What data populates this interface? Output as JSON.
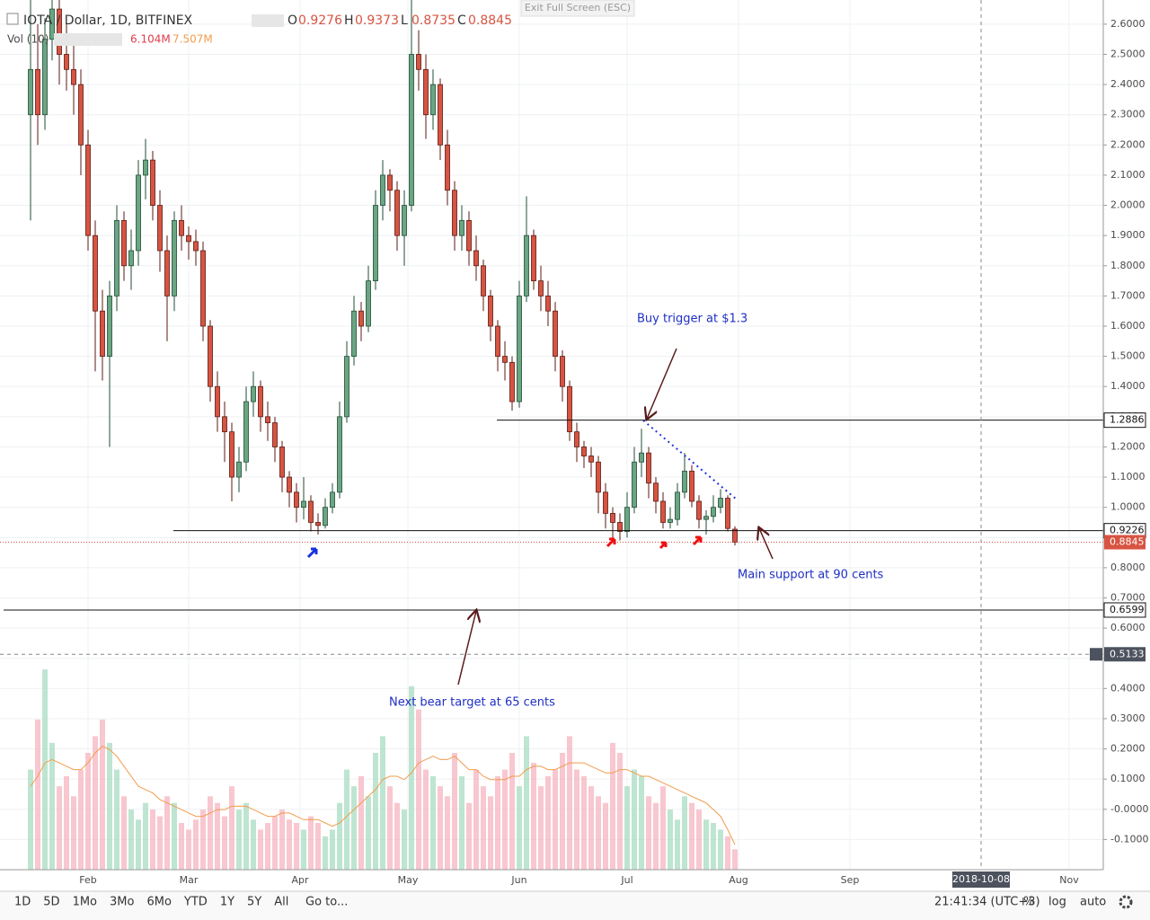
{
  "chart_data": {
    "type": "candlestick",
    "title": "IOTA / Dollar, 1D, BITFINEX",
    "ohlc_labels": [
      "O",
      "H",
      "L",
      "C"
    ],
    "ohlc": [
      [
        2.3,
        2.7,
        1.95,
        2.45
      ],
      [
        2.45,
        2.6,
        2.2,
        2.3
      ],
      [
        2.3,
        2.62,
        2.25,
        2.55
      ],
      [
        2.55,
        2.72,
        2.48,
        2.65
      ],
      [
        2.65,
        2.7,
        2.4,
        2.5
      ],
      [
        2.5,
        2.62,
        2.38,
        2.45
      ],
      [
        2.45,
        2.55,
        2.3,
        2.4
      ],
      [
        2.4,
        2.45,
        2.1,
        2.2
      ],
      [
        2.2,
        2.25,
        1.85,
        1.9
      ],
      [
        1.9,
        1.95,
        1.45,
        1.65
      ],
      [
        1.65,
        1.72,
        1.42,
        1.5
      ],
      [
        1.5,
        1.75,
        1.2,
        1.7
      ],
      [
        1.7,
        2.0,
        1.65,
        1.95
      ],
      [
        1.95,
        1.98,
        1.75,
        1.8
      ],
      [
        1.8,
        1.92,
        1.72,
        1.85
      ],
      [
        1.85,
        2.15,
        1.8,
        2.1
      ],
      [
        2.1,
        2.22,
        2.02,
        2.15
      ],
      [
        2.15,
        2.18,
        1.95,
        2.0
      ],
      [
        2.0,
        2.05,
        1.78,
        1.85
      ],
      [
        1.85,
        1.9,
        1.55,
        1.7
      ],
      [
        1.7,
        1.98,
        1.65,
        1.95
      ],
      [
        1.95,
        2.0,
        1.85,
        1.9
      ],
      [
        1.9,
        1.93,
        1.82,
        1.88
      ],
      [
        1.88,
        1.92,
        1.8,
        1.85
      ],
      [
        1.85,
        1.88,
        1.55,
        1.6
      ],
      [
        1.6,
        1.62,
        1.35,
        1.4
      ],
      [
        1.4,
        1.45,
        1.25,
        1.3
      ],
      [
        1.3,
        1.35,
        1.15,
        1.25
      ],
      [
        1.25,
        1.28,
        1.02,
        1.1
      ],
      [
        1.1,
        1.2,
        1.05,
        1.15
      ],
      [
        1.15,
        1.4,
        1.12,
        1.35
      ],
      [
        1.35,
        1.45,
        1.3,
        1.4
      ],
      [
        1.4,
        1.42,
        1.25,
        1.3
      ],
      [
        1.3,
        1.35,
        1.22,
        1.28
      ],
      [
        1.28,
        1.3,
        1.15,
        1.2
      ],
      [
        1.2,
        1.22,
        1.05,
        1.1
      ],
      [
        1.1,
        1.12,
        1.0,
        1.05
      ],
      [
        1.05,
        1.08,
        0.95,
        1.0
      ],
      [
        1.0,
        1.1,
        0.96,
        1.02
      ],
      [
        1.02,
        1.04,
        0.92,
        0.95
      ],
      [
        0.95,
        0.98,
        0.91,
        0.94
      ],
      [
        0.94,
        1.03,
        0.93,
        1.0
      ],
      [
        1.0,
        1.08,
        0.98,
        1.05
      ],
      [
        1.05,
        1.35,
        1.03,
        1.3
      ],
      [
        1.3,
        1.55,
        1.28,
        1.5
      ],
      [
        1.5,
        1.7,
        1.47,
        1.65
      ],
      [
        1.65,
        1.68,
        1.55,
        1.6
      ],
      [
        1.6,
        1.8,
        1.58,
        1.75
      ],
      [
        1.75,
        2.05,
        1.72,
        2.0
      ],
      [
        2.0,
        2.15,
        1.95,
        2.1
      ],
      [
        2.1,
        2.12,
        1.98,
        2.05
      ],
      [
        2.05,
        2.08,
        1.85,
        1.9
      ],
      [
        1.9,
        2.05,
        1.8,
        2.0
      ],
      [
        2.0,
        2.68,
        1.98,
        2.5
      ],
      [
        2.5,
        2.58,
        2.38,
        2.45
      ],
      [
        2.45,
        2.5,
        2.22,
        2.3
      ],
      [
        2.3,
        2.45,
        2.25,
        2.4
      ],
      [
        2.4,
        2.42,
        2.15,
        2.2
      ],
      [
        2.2,
        2.25,
        2.0,
        2.05
      ],
      [
        2.05,
        2.08,
        1.85,
        1.9
      ],
      [
        1.9,
        2.0,
        1.85,
        1.95
      ],
      [
        1.95,
        1.98,
        1.8,
        1.85
      ],
      [
        1.85,
        1.9,
        1.75,
        1.8
      ],
      [
        1.8,
        1.82,
        1.65,
        1.7
      ],
      [
        1.7,
        1.72,
        1.55,
        1.6
      ],
      [
        1.6,
        1.62,
        1.45,
        1.5
      ],
      [
        1.5,
        1.55,
        1.42,
        1.48
      ],
      [
        1.48,
        1.5,
        1.32,
        1.35
      ],
      [
        1.35,
        1.75,
        1.33,
        1.7
      ],
      [
        1.7,
        2.03,
        1.68,
        1.9
      ],
      [
        1.9,
        1.92,
        1.72,
        1.75
      ],
      [
        1.75,
        1.8,
        1.65,
        1.7
      ],
      [
        1.7,
        1.75,
        1.6,
        1.65
      ],
      [
        1.65,
        1.68,
        1.45,
        1.5
      ],
      [
        1.5,
        1.52,
        1.35,
        1.4
      ],
      [
        1.4,
        1.42,
        1.22,
        1.25
      ],
      [
        1.25,
        1.28,
        1.15,
        1.2
      ],
      [
        1.2,
        1.22,
        1.13,
        1.17
      ],
      [
        1.17,
        1.2,
        1.1,
        1.15
      ],
      [
        1.15,
        1.17,
        0.98,
        1.05
      ],
      [
        1.05,
        1.08,
        0.93,
        0.98
      ],
      [
        0.98,
        1.0,
        0.89,
        0.95
      ],
      [
        0.95,
        0.98,
        0.89,
        0.92
      ],
      [
        0.92,
        1.05,
        0.9,
        1.0
      ],
      [
        1.0,
        1.2,
        0.98,
        1.15
      ],
      [
        1.15,
        1.26,
        1.1,
        1.18
      ],
      [
        1.18,
        1.2,
        1.03,
        1.08
      ],
      [
        1.08,
        1.1,
        0.98,
        1.02
      ],
      [
        1.02,
        1.05,
        0.93,
        0.95
      ],
      [
        0.95,
        1.0,
        0.93,
        0.96
      ],
      [
        0.96,
        1.08,
        0.94,
        1.05
      ],
      [
        1.05,
        1.18,
        1.03,
        1.12
      ],
      [
        1.12,
        1.14,
        1.0,
        1.02
      ],
      [
        1.02,
        1.04,
        0.93,
        0.96
      ],
      [
        0.96,
        0.99,
        0.91,
        0.97
      ],
      [
        0.97,
        1.04,
        0.95,
        1.0
      ],
      [
        1.0,
        1.06,
        0.98,
        1.03
      ],
      [
        1.03,
        1.04,
        0.92,
        0.93
      ],
      [
        0.9276,
        0.9373,
        0.8735,
        0.8845
      ]
    ],
    "up_color": "#6ba583",
    "down_color": "#d75442",
    "volume": {
      "label": "Vol (10)",
      "last_label": "6.104M",
      "ma_last_label": "7.507M",
      "ma_color": "#f29c4c",
      "values": [
        30,
        45,
        60,
        38,
        25,
        28,
        22,
        30,
        35,
        40,
        45,
        38,
        30,
        22,
        18,
        15,
        20,
        18,
        16,
        22,
        20,
        14,
        12,
        15,
        18,
        22,
        20,
        16,
        25,
        18,
        20,
        15,
        12,
        14,
        16,
        18,
        15,
        14,
        12,
        16,
        14,
        10,
        12,
        20,
        30,
        25,
        28,
        22,
        35,
        40,
        25,
        20,
        18,
        55,
        48,
        30,
        28,
        25,
        22,
        35,
        28,
        20,
        30,
        25,
        22,
        28,
        30,
        35,
        25,
        40,
        32,
        25,
        28,
        30,
        35,
        40,
        30,
        28,
        25,
        22,
        20,
        38,
        35,
        25,
        30,
        28,
        22,
        20,
        25,
        18,
        15,
        22,
        20,
        18,
        15,
        14,
        12,
        10,
        6.104
      ],
      "ma": [
        25,
        28,
        32,
        33,
        32,
        31,
        30,
        30,
        32,
        35,
        37,
        36,
        34,
        31,
        28,
        25,
        24,
        23,
        21,
        20,
        19,
        18,
        17,
        16,
        16,
        17,
        18,
        18,
        19,
        19,
        19,
        18,
        17,
        16,
        16,
        17,
        17,
        16,
        15,
        15,
        15,
        14,
        13,
        14,
        16,
        18,
        20,
        22,
        24,
        27,
        28,
        28,
        27,
        29,
        32,
        33,
        34,
        33,
        33,
        34,
        32,
        30,
        30,
        28,
        27,
        27,
        27,
        28,
        28,
        30,
        31,
        31,
        30,
        30,
        31,
        32,
        32,
        32,
        31,
        30,
        29,
        29,
        30,
        30,
        29,
        28,
        28,
        27,
        26,
        25,
        24,
        23,
        22,
        21,
        20,
        18,
        16,
        12,
        7.507
      ],
      "vlim": [
        0,
        70
      ]
    },
    "xlim": [
      -4.25,
      149.25
    ],
    "xticks": [
      {
        "value": 8,
        "label": "Feb"
      },
      {
        "value": 22,
        "label": "Mar"
      },
      {
        "value": 37.5,
        "label": "Apr"
      },
      {
        "value": 52.5,
        "label": "May"
      },
      {
        "value": 68,
        "label": "Jun"
      },
      {
        "value": 83,
        "label": "Jul"
      },
      {
        "value": 98.5,
        "label": "Aug"
      },
      {
        "value": 114,
        "label": "Sep"
      },
      {
        "value": 144.5,
        "label": "Nov"
      }
    ],
    "ylim": [
      -0.2,
      2.68
    ],
    "yticks": [
      {
        "value": 2.6,
        "label": "2.6000"
      },
      {
        "value": 2.5,
        "label": "2.5000"
      },
      {
        "value": 2.4,
        "label": "2.4000"
      },
      {
        "value": 2.3,
        "label": "2.3000"
      },
      {
        "value": 2.2,
        "label": "2.2000"
      },
      {
        "value": 2.1,
        "label": "2.1000"
      },
      {
        "value": 2.0,
        "label": "2.0000"
      },
      {
        "value": 1.9,
        "label": "1.9000"
      },
      {
        "value": 1.8,
        "label": "1.8000"
      },
      {
        "value": 1.7,
        "label": "1.7000"
      },
      {
        "value": 1.6,
        "label": "1.6000"
      },
      {
        "value": 1.5,
        "label": "1.5000"
      },
      {
        "value": 1.4,
        "label": "1.4000"
      },
      {
        "value": 1.3,
        "label": "1.3000"
      },
      {
        "value": 1.2,
        "label": "1.2000"
      },
      {
        "value": 1.1,
        "label": "1.1000"
      },
      {
        "value": 1.0,
        "label": "1.0000"
      },
      {
        "value": 0.9,
        "label": "0.9000"
      },
      {
        "value": 0.8,
        "label": "0.8000"
      },
      {
        "value": 0.7,
        "label": "0.7000"
      },
      {
        "value": 0.6,
        "label": "0.6000"
      },
      {
        "value": 0.5,
        "label": "0.5000"
      },
      {
        "value": 0.4,
        "label": "0.4000"
      },
      {
        "value": 0.3,
        "label": "0.3000"
      },
      {
        "value": 0.2,
        "label": "0.2000"
      },
      {
        "value": 0.1,
        "label": "0.1000"
      },
      {
        "value": 0,
        "label": "-0.0000"
      },
      {
        "value": -0.1,
        "label": "-0.1000"
      }
    ],
    "grid": true,
    "levels": [
      1.2886,
      0.9226,
      0.6599
    ],
    "crosshair": {
      "price": 0.5133,
      "date": "2018-10-08"
    },
    "annotations": [
      "Buy trigger at $1.3",
      "Main support at 90 cents",
      "Next bear target at 65 cents"
    ],
    "exit_button": "Exit Full Screen (ESC)",
    "toolbar": {
      "ranges": [
        "1D",
        "5D",
        "1Mo",
        "3Mo",
        "6Mo",
        "YTD",
        "1Y",
        "5Y",
        "All"
      ],
      "goto": "Go to...",
      "clock": "21:41:34 (UTC+3)",
      "options": [
        "%",
        "log",
        "auto"
      ]
    }
  }
}
